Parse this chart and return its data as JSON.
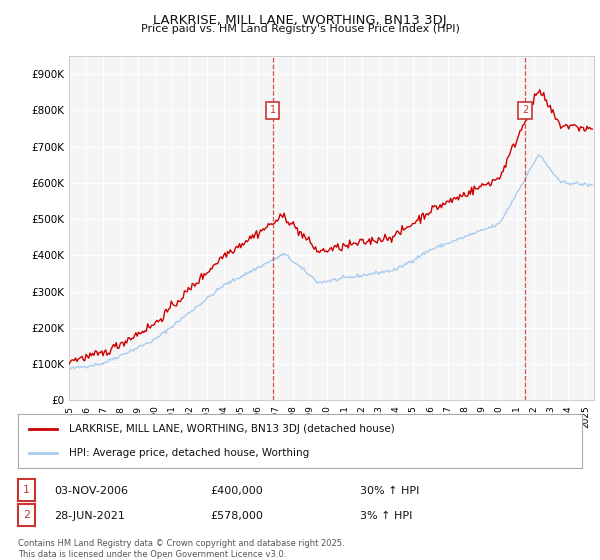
{
  "title": "LARKRISE, MILL LANE, WORTHING, BN13 3DJ",
  "subtitle": "Price paid vs. HM Land Registry's House Price Index (HPI)",
  "background_color": "#ffffff",
  "plot_bg_color": "#f5f5f5",
  "grid_color": "#ffffff",
  "line1_color": "#cc0000",
  "line2_color": "#aaccee",
  "vline_color": "#cc3333",
  "ylim": [
    0,
    950000
  ],
  "yticks": [
    0,
    100000,
    200000,
    300000,
    400000,
    500000,
    600000,
    700000,
    800000,
    900000
  ],
  "ytick_labels": [
    "£0",
    "£100K",
    "£200K",
    "£300K",
    "£400K",
    "£500K",
    "£600K",
    "£700K",
    "£800K",
    "£900K"
  ],
  "sale1": {
    "date_label": "03-NOV-2006",
    "price": 400000,
    "price_str": "£400,000",
    "hpi_change": "30% ↑ HPI",
    "marker_x": 2006.84
  },
  "sale2": {
    "date_label": "28-JUN-2021",
    "price": 578000,
    "price_str": "£578,000",
    "hpi_change": "3% ↑ HPI",
    "marker_x": 2021.49
  },
  "legend1_label": "LARKRISE, MILL LANE, WORTHING, BN13 3DJ (detached house)",
  "legend2_label": "HPI: Average price, detached house, Worthing",
  "footnote": "Contains HM Land Registry data © Crown copyright and database right 2025.\nThis data is licensed under the Open Government Licence v3.0.",
  "xmin": 1995,
  "xmax": 2025.5,
  "xticks": [
    1995,
    1996,
    1997,
    1998,
    1999,
    2000,
    2001,
    2002,
    2003,
    2004,
    2005,
    2006,
    2007,
    2008,
    2009,
    2010,
    2011,
    2012,
    2013,
    2014,
    2015,
    2016,
    2017,
    2018,
    2019,
    2020,
    2021,
    2022,
    2023,
    2024,
    2025
  ]
}
